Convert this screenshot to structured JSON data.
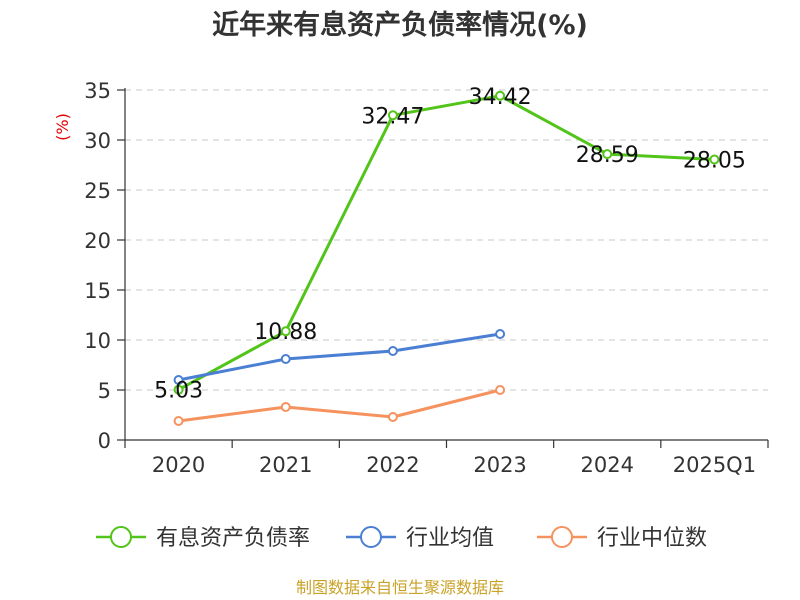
{
  "chart_data": {
    "type": "line",
    "title": "近年来有息资产负债率情况(%)",
    "ylabel": "(%)",
    "categories": [
      "2020",
      "2021",
      "2022",
      "2023",
      "2024",
      "2025Q1"
    ],
    "ylim": [
      0,
      35
    ],
    "yticks": [
      0,
      5,
      10,
      15,
      20,
      25,
      30,
      35
    ],
    "grid": true,
    "legend_position": "bottom",
    "series": [
      {
        "name": "有息资产负债率",
        "color": "#52c41a",
        "values": [
          5.03,
          10.88,
          32.47,
          34.42,
          28.59,
          28.05
        ],
        "show_labels": true
      },
      {
        "name": "行业均值",
        "color": "#4a7fd4",
        "values": [
          6.0,
          8.1,
          8.9,
          10.6,
          null,
          null
        ],
        "show_labels": false
      },
      {
        "name": "行业中位数",
        "color": "#f5925e",
        "values": [
          1.9,
          3.3,
          2.3,
          5.0,
          null,
          null
        ],
        "show_labels": false
      }
    ]
  },
  "source": "制图数据来自恒生聚源数据库"
}
